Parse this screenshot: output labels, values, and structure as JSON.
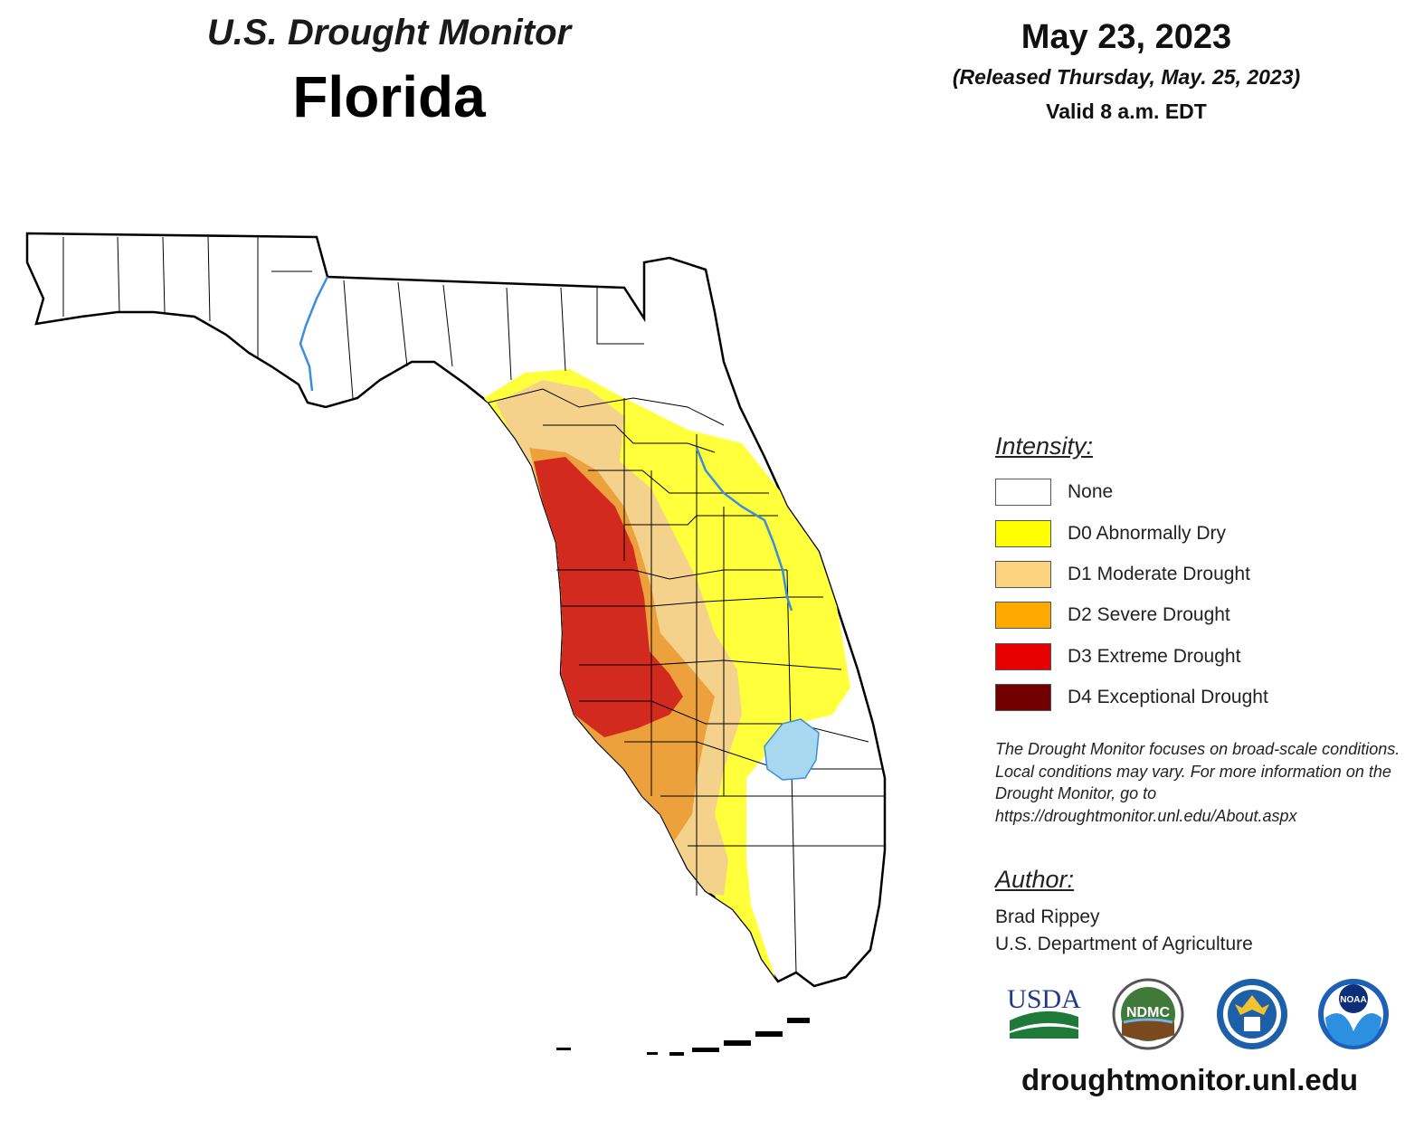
{
  "header": {
    "title": "U.S. Drought Monitor",
    "state": "Florida",
    "date": "May 23, 2023",
    "released": "(Released Thursday, May. 25, 2023)",
    "valid": "Valid 8 a.m. EDT"
  },
  "legend": {
    "heading": "Intensity:",
    "items": [
      {
        "label": "None",
        "color": "#ffffff"
      },
      {
        "label": "D0 Abnormally Dry",
        "color": "#ffff00"
      },
      {
        "label": "D1 Moderate Drought",
        "color": "#fcd37f"
      },
      {
        "label": "D2 Severe Drought",
        "color": "#ffaa00"
      },
      {
        "label": "D3 Extreme Drought",
        "color": "#e60000"
      },
      {
        "label": "D4 Exceptional Drought",
        "color": "#730000"
      }
    ]
  },
  "note": "The Drought Monitor focuses on broad-scale conditions. Local conditions may vary. For more information on the Drought Monitor, go to https://droughtmonitor.unl.edu/About.aspx",
  "author": {
    "heading": "Author:",
    "name": "Brad Rippey",
    "organization": "U.S. Department of Agriculture"
  },
  "logos": {
    "usda": "USDA",
    "ndmc": "NDMC",
    "noaa": "NOAA",
    "doc_icon": "department-of-commerce-seal-icon"
  },
  "footer": {
    "url": "droughtmonitor.unl.edu"
  },
  "map_colors": {
    "d0": "#ffff3c",
    "d1": "#f5d28c",
    "d2": "#eca13c",
    "d3": "#d22a1e",
    "water": "#a8d8ef",
    "river": "#3a8ee0",
    "border": "#000000"
  }
}
